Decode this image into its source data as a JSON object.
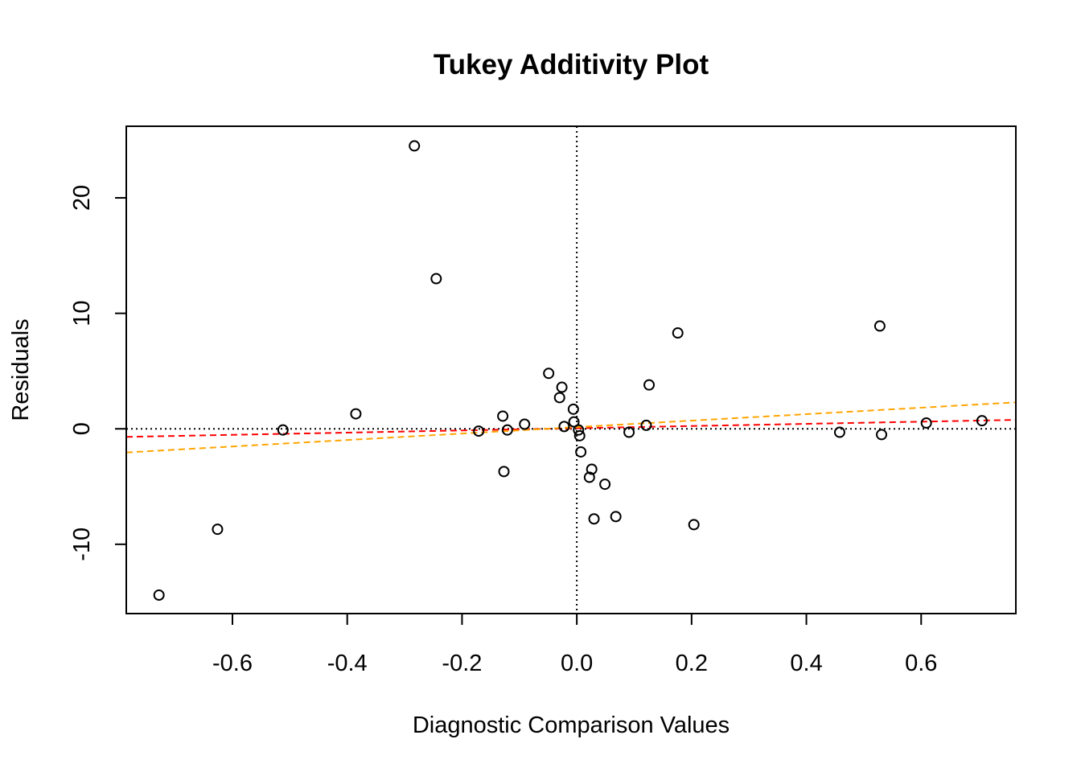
{
  "chart_data": {
    "type": "scatter",
    "title": "Tukey Additivity Plot",
    "xlabel": "Diagnostic Comparison Values",
    "ylabel": "Residuals",
    "xlim": [
      -0.785,
      0.765
    ],
    "ylim": [
      -16.0,
      26.2
    ],
    "xticks": [
      -0.6,
      -0.4,
      -0.2,
      0.0,
      0.2,
      0.4,
      0.6
    ],
    "xtick_labels": [
      "-0.6",
      "-0.4",
      "-0.2",
      "0.0",
      "0.2",
      "0.4",
      "0.6"
    ],
    "yticks": [
      -10,
      0,
      10,
      20
    ],
    "ytick_labels": [
      "-10",
      "0",
      "10",
      "20"
    ],
    "grid": false,
    "reference_lines": {
      "horizontal_y": 0,
      "vertical_x": 0,
      "style": "dotted",
      "color": "#000000"
    },
    "fit_lines": [
      {
        "color": "#ff0000",
        "style": "dashed",
        "intercept": 0.05,
        "slope": 0.95
      },
      {
        "color": "#ffa500",
        "style": "dashed",
        "intercept": 0.15,
        "slope": 2.8
      }
    ],
    "points": [
      {
        "x": -0.728,
        "y": -14.4
      },
      {
        "x": -0.626,
        "y": -8.7
      },
      {
        "x": -0.512,
        "y": -0.1
      },
      {
        "x": -0.385,
        "y": 1.3
      },
      {
        "x": -0.283,
        "y": 24.5
      },
      {
        "x": -0.245,
        "y": 13.0
      },
      {
        "x": -0.171,
        "y": -0.2
      },
      {
        "x": -0.129,
        "y": 1.1
      },
      {
        "x": -0.127,
        "y": -3.7
      },
      {
        "x": -0.121,
        "y": -0.1
      },
      {
        "x": -0.091,
        "y": 0.4
      },
      {
        "x": -0.049,
        "y": 4.8
      },
      {
        "x": -0.03,
        "y": 2.7
      },
      {
        "x": -0.026,
        "y": 3.6
      },
      {
        "x": -0.022,
        "y": 0.2
      },
      {
        "x": -0.006,
        "y": 1.7
      },
      {
        "x": -0.005,
        "y": 0.6
      },
      {
        "x": 0.003,
        "y": -0.1
      },
      {
        "x": 0.005,
        "y": -0.6
      },
      {
        "x": 0.007,
        "y": -2.0
      },
      {
        "x": 0.022,
        "y": -4.2
      },
      {
        "x": 0.026,
        "y": -3.5
      },
      {
        "x": 0.03,
        "y": -7.8
      },
      {
        "x": 0.049,
        "y": -4.8
      },
      {
        "x": 0.068,
        "y": -7.6
      },
      {
        "x": 0.091,
        "y": -0.3
      },
      {
        "x": 0.121,
        "y": 0.3
      },
      {
        "x": 0.126,
        "y": 3.8
      },
      {
        "x": 0.176,
        "y": 8.3
      },
      {
        "x": 0.204,
        "y": -8.3
      },
      {
        "x": 0.458,
        "y": -0.3
      },
      {
        "x": 0.528,
        "y": 8.9
      },
      {
        "x": 0.531,
        "y": -0.5
      },
      {
        "x": 0.609,
        "y": 0.5
      },
      {
        "x": 0.706,
        "y": 0.7
      }
    ]
  }
}
